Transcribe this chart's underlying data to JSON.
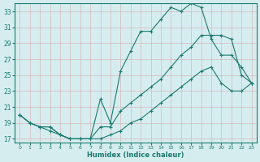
{
  "xlabel": "Humidex (Indice chaleur)",
  "bg_color": "#d6edf0",
  "grid_color": "#b8d8dc",
  "line_color": "#1a7a6e",
  "xlim": [
    -0.5,
    23.5
  ],
  "ylim": [
    16.5,
    34.0
  ],
  "xticks": [
    0,
    1,
    2,
    3,
    4,
    5,
    6,
    7,
    8,
    9,
    10,
    11,
    12,
    13,
    14,
    15,
    16,
    17,
    18,
    19,
    20,
    21,
    22,
    23
  ],
  "yticks": [
    17,
    19,
    21,
    23,
    25,
    27,
    29,
    31,
    33
  ],
  "curve1_x": [
    0,
    1,
    2,
    3,
    4,
    5,
    6,
    7,
    8,
    9,
    10,
    11,
    12,
    13,
    14,
    15,
    16,
    17,
    18,
    19,
    20,
    21,
    22,
    23
  ],
  "curve1_y": [
    20.0,
    19.0,
    18.5,
    18.5,
    17.5,
    17.0,
    17.0,
    17.0,
    22.0,
    19.0,
    25.5,
    28.0,
    30.5,
    30.5,
    32.0,
    33.5,
    33.0,
    34.0,
    33.5,
    29.5,
    27.5,
    27.5,
    26.0,
    24.0
  ],
  "curve2_x": [
    0,
    1,
    2,
    3,
    4,
    5,
    6,
    7,
    8,
    9,
    10,
    11,
    12,
    13,
    14,
    15,
    16,
    17,
    18,
    19,
    20,
    21,
    22,
    23
  ],
  "curve2_y": [
    20.0,
    19.0,
    18.5,
    18.5,
    17.5,
    17.0,
    17.0,
    17.0,
    18.5,
    18.5,
    20.5,
    21.5,
    22.5,
    23.5,
    24.5,
    26.0,
    27.5,
    28.5,
    30.0,
    30.0,
    30.0,
    29.5,
    25.0,
    24.0
  ],
  "curve3_x": [
    0,
    1,
    2,
    3,
    4,
    5,
    6,
    7,
    8,
    9,
    10,
    11,
    12,
    13,
    14,
    15,
    16,
    17,
    18,
    19,
    20,
    21,
    22,
    23
  ],
  "curve3_y": [
    20.0,
    19.0,
    18.5,
    18.0,
    17.5,
    17.0,
    17.0,
    17.0,
    17.0,
    17.5,
    18.0,
    19.0,
    19.5,
    20.5,
    21.5,
    22.5,
    23.5,
    24.5,
    25.5,
    26.0,
    24.0,
    23.0,
    23.0,
    24.0
  ]
}
